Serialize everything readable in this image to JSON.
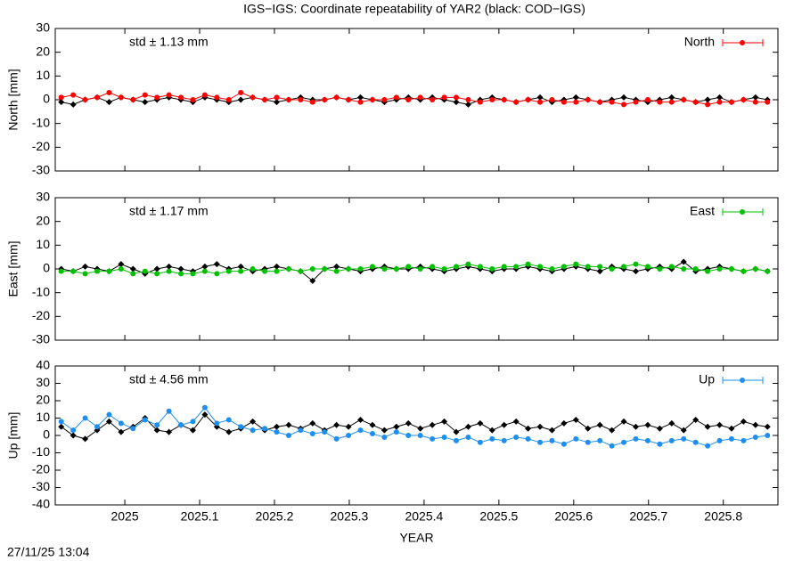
{
  "title": "IGS−IGS: Coordinate repeatability of YAR2 (black: COD−IGS)",
  "timestamp": "27/11/25 13:04",
  "chart_data": [
    {
      "type": "line",
      "ylabel": "North [mm]",
      "annotation": "std ± 1.13 mm",
      "annotation_color": "#ff0000",
      "xlim": [
        2024.907,
        2025.873
      ],
      "xticks": [
        2025,
        2025.1,
        2025.2,
        2025.3,
        2025.4,
        2025.5,
        2025.6,
        2025.7,
        2025.8
      ],
      "ylim": [
        -30,
        30
      ],
      "yticks": [
        -30,
        -20,
        -10,
        0,
        10,
        20,
        30
      ],
      "grid": false,
      "legend": "top-right",
      "x": [
        2024.915,
        2024.931,
        2024.947,
        2024.963,
        2024.979,
        2024.995,
        2025.011,
        2025.027,
        2025.043,
        2025.059,
        2025.075,
        2025.091,
        2025.107,
        2025.123,
        2025.139,
        2025.155,
        2025.171,
        2025.187,
        2025.203,
        2025.219,
        2025.235,
        2025.251,
        2025.267,
        2025.283,
        2025.299,
        2025.315,
        2025.331,
        2025.347,
        2025.363,
        2025.379,
        2025.395,
        2025.411,
        2025.427,
        2025.443,
        2025.459,
        2025.475,
        2025.491,
        2025.507,
        2025.523,
        2025.539,
        2025.555,
        2025.571,
        2025.587,
        2025.603,
        2025.619,
        2025.635,
        2025.651,
        2025.667,
        2025.683,
        2025.699,
        2025.715,
        2025.731,
        2025.747,
        2025.763,
        2025.779,
        2025.795,
        2025.811,
        2025.827,
        2025.843,
        2025.859
      ],
      "series": [
        {
          "color": "#000000",
          "values": [
            -1,
            -2,
            0,
            1,
            -1,
            1,
            0,
            -1,
            0,
            1,
            0,
            -1,
            1,
            0,
            -1,
            0,
            1,
            0,
            -1,
            0,
            1,
            0,
            0,
            1,
            0,
            1,
            0,
            -1,
            0,
            1,
            0,
            1,
            0,
            -1,
            -2,
            0,
            1,
            0,
            -1,
            0,
            1,
            -1,
            0,
            1,
            0,
            -1,
            0,
            1,
            0,
            -1,
            0,
            1,
            0,
            -1,
            0,
            1,
            -1,
            0,
            1,
            0
          ]
        },
        {
          "name": "North",
          "color": "#ff0000",
          "values": [
            1,
            2,
            0,
            1,
            3,
            1,
            0,
            2,
            1,
            2,
            1,
            0,
            2,
            1,
            0,
            3,
            1,
            0,
            1,
            0,
            0,
            -1,
            0,
            1,
            0,
            -1,
            0,
            0,
            1,
            0,
            1,
            0,
            1,
            1,
            0,
            -1,
            0,
            0,
            -1,
            0,
            -1,
            0,
            -1,
            -1,
            0,
            -1,
            -1,
            -2,
            -1,
            0,
            -1,
            -1,
            0,
            -1,
            -2,
            -1,
            -1,
            0,
            -1,
            -1
          ]
        }
      ]
    },
    {
      "type": "line",
      "ylabel": "East [mm]",
      "annotation": "std ± 1.17 mm",
      "annotation_color": "#00c000",
      "xlim": [
        2024.907,
        2025.873
      ],
      "xticks": [
        2025,
        2025.1,
        2025.2,
        2025.3,
        2025.4,
        2025.5,
        2025.6,
        2025.7,
        2025.8
      ],
      "ylim": [
        -30,
        30
      ],
      "yticks": [
        -30,
        -20,
        -10,
        0,
        10,
        20,
        30
      ],
      "grid": false,
      "legend": "top-right",
      "x": [
        2024.915,
        2024.931,
        2024.947,
        2024.963,
        2024.979,
        2024.995,
        2025.011,
        2025.027,
        2025.043,
        2025.059,
        2025.075,
        2025.091,
        2025.107,
        2025.123,
        2025.139,
        2025.155,
        2025.171,
        2025.187,
        2025.203,
        2025.219,
        2025.235,
        2025.251,
        2025.267,
        2025.283,
        2025.299,
        2025.315,
        2025.331,
        2025.347,
        2025.363,
        2025.379,
        2025.395,
        2025.411,
        2025.427,
        2025.443,
        2025.459,
        2025.475,
        2025.491,
        2025.507,
        2025.523,
        2025.539,
        2025.555,
        2025.571,
        2025.587,
        2025.603,
        2025.619,
        2025.635,
        2025.651,
        2025.667,
        2025.683,
        2025.699,
        2025.715,
        2025.731,
        2025.747,
        2025.763,
        2025.779,
        2025.795,
        2025.811,
        2025.827,
        2025.843,
        2025.859
      ],
      "series": [
        {
          "color": "#000000",
          "values": [
            0,
            -1,
            1,
            0,
            -1,
            2,
            0,
            -2,
            0,
            1,
            0,
            -1,
            1,
            2,
            0,
            1,
            -1,
            0,
            1,
            0,
            -1,
            -5,
            0,
            1,
            0,
            -1,
            0,
            1,
            0,
            0,
            1,
            0,
            -1,
            0,
            1,
            0,
            -1,
            0,
            0,
            1,
            0,
            -1,
            0,
            1,
            0,
            -1,
            1,
            0,
            -1,
            0,
            1,
            0,
            3,
            -1,
            0,
            1,
            0,
            -1,
            0,
            -1
          ]
        },
        {
          "name": "East",
          "color": "#00c000",
          "values": [
            -1,
            -1,
            -2,
            -1,
            -1,
            0,
            -2,
            -1,
            -2,
            -1,
            -2,
            -2,
            -1,
            -2,
            -1,
            -1,
            0,
            -1,
            -1,
            0,
            -1,
            0,
            0,
            -1,
            0,
            0,
            1,
            0,
            0,
            1,
            0,
            1,
            0,
            1,
            2,
            1,
            0,
            1,
            1,
            2,
            1,
            0,
            1,
            2,
            1,
            1,
            0,
            1,
            2,
            1,
            0,
            1,
            0,
            0,
            -1,
            0,
            0,
            -1,
            0,
            -1
          ]
        }
      ]
    },
    {
      "type": "line",
      "ylabel": "Up [mm]",
      "xlabel": "YEAR",
      "annotation": "std ± 4.56 mm",
      "annotation_color": "#1e8fef",
      "xlim": [
        2024.907,
        2025.873
      ],
      "xticks": [
        2025,
        2025.1,
        2025.2,
        2025.3,
        2025.4,
        2025.5,
        2025.6,
        2025.7,
        2025.8
      ],
      "ylim": [
        -40,
        40
      ],
      "yticks": [
        -40,
        -30,
        -20,
        -10,
        0,
        10,
        20,
        30,
        40
      ],
      "grid": false,
      "legend": "top-right",
      "x": [
        2024.915,
        2024.931,
        2024.947,
        2024.963,
        2024.979,
        2024.995,
        2025.011,
        2025.027,
        2025.043,
        2025.059,
        2025.075,
        2025.091,
        2025.107,
        2025.123,
        2025.139,
        2025.155,
        2025.171,
        2025.187,
        2025.203,
        2025.219,
        2025.235,
        2025.251,
        2025.267,
        2025.283,
        2025.299,
        2025.315,
        2025.331,
        2025.347,
        2025.363,
        2025.379,
        2025.395,
        2025.411,
        2025.427,
        2025.443,
        2025.459,
        2025.475,
        2025.491,
        2025.507,
        2025.523,
        2025.539,
        2025.555,
        2025.571,
        2025.587,
        2025.603,
        2025.619,
        2025.635,
        2025.651,
        2025.667,
        2025.683,
        2025.699,
        2025.715,
        2025.731,
        2025.747,
        2025.763,
        2025.779,
        2025.795,
        2025.811,
        2025.827,
        2025.843,
        2025.859
      ],
      "series": [
        {
          "color": "#000000",
          "values": [
            5,
            0,
            -2,
            3,
            8,
            2,
            5,
            10,
            3,
            2,
            6,
            3,
            12,
            5,
            2,
            4,
            8,
            3,
            5,
            6,
            4,
            7,
            3,
            6,
            5,
            9,
            6,
            3,
            5,
            7,
            4,
            6,
            8,
            2,
            5,
            7,
            3,
            6,
            8,
            4,
            5,
            3,
            7,
            9,
            4,
            6,
            3,
            8,
            5,
            6,
            4,
            7,
            3,
            9,
            5,
            6,
            4,
            8,
            6,
            5
          ]
        },
        {
          "name": "Up",
          "color": "#1e8fef",
          "values": [
            8,
            3,
            10,
            5,
            12,
            7,
            4,
            9,
            6,
            14,
            6,
            8,
            16,
            7,
            9,
            5,
            3,
            4,
            2,
            0,
            3,
            1,
            2,
            -2,
            0,
            3,
            1,
            -1,
            2,
            0,
            0,
            -2,
            -1,
            -3,
            -1,
            -4,
            -2,
            -3,
            -1,
            -2,
            -4,
            -3,
            -5,
            -2,
            -4,
            -3,
            -6,
            -4,
            -2,
            -3,
            -5,
            -3,
            -2,
            -4,
            -6,
            -3,
            -2,
            -3,
            -1,
            0
          ]
        }
      ]
    }
  ]
}
